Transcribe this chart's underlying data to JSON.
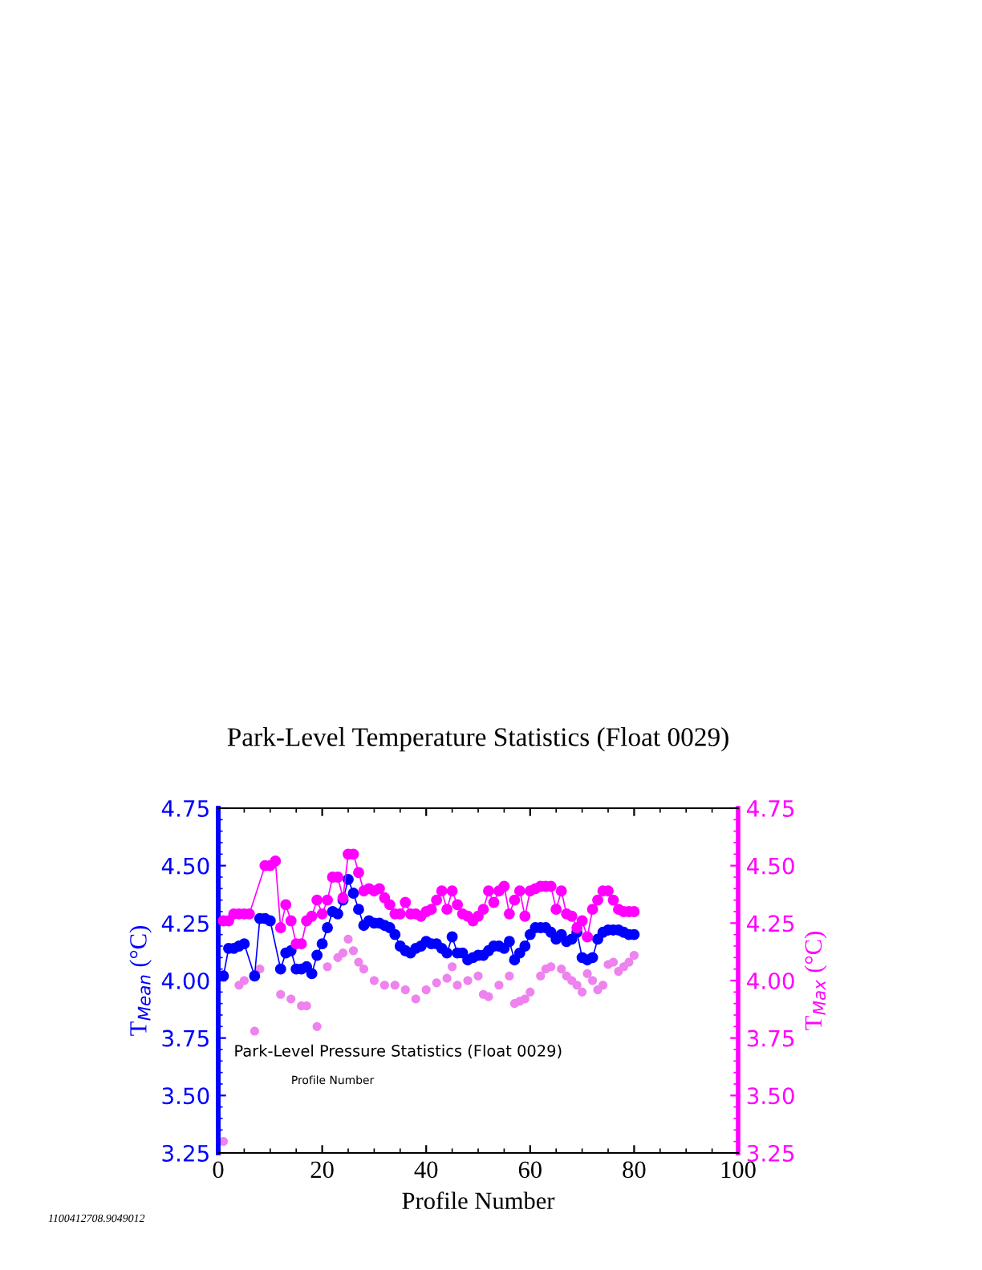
{
  "chart_data": {
    "type": "line",
    "title": "Park-Level Temperature Statistics (Float 0029)",
    "xlabel": "Profile Number",
    "ylabel": "T$_{Mean}$ (°C)",
    "y2label": "T$_{Max}$ (°C)",
    "xlim": [
      0,
      100
    ],
    "xticks": [
      0,
      20,
      40,
      60,
      80,
      100
    ],
    "ylim": [
      3.25,
      4.75
    ],
    "yticks": [
      3.25,
      {
        "value": 3.5,
        "label": "3.50"
      },
      3.75,
      {
        "value": 4.0,
        "label": "4.00"
      },
      4.25,
      {
        "value": 4.5,
        "label": "4.50"
      },
      4.75
    ],
    "y2lim": [
      3.25,
      4.75
    ],
    "y2ticks": [
      3.25,
      {
        "value": 3.5,
        "label": "3.50"
      },
      3.75,
      {
        "value": 4.0,
        "label": "4.00"
      },
      4.25,
      {
        "value": 4.5,
        "label": "4.50"
      },
      4.75
    ],
    "marker": "circle",
    "series": [
      {
        "color": "#0000ff",
        "x": [
          1,
          2,
          3,
          4,
          5,
          7,
          8,
          9,
          10,
          12,
          13,
          14,
          15,
          16,
          17,
          18,
          19,
          20,
          21,
          22,
          23,
          24,
          25,
          26,
          27,
          28,
          29,
          30,
          31,
          32,
          33,
          34,
          35,
          36,
          37,
          38,
          39,
          40,
          41,
          42,
          43,
          44,
          45,
          46,
          47,
          48,
          49,
          50,
          51,
          52,
          53,
          54,
          55,
          56,
          57,
          58,
          59,
          60,
          61,
          62,
          63,
          64,
          65,
          66,
          67,
          68,
          69,
          70,
          71,
          72,
          73,
          74,
          75,
          76,
          77,
          78,
          79,
          80
        ],
        "values": [
          4.02,
          4.14,
          4.14,
          4.15,
          4.16,
          4.02,
          4.27,
          4.27,
          4.26,
          4.05,
          4.12,
          4.13,
          4.05,
          4.05,
          4.06,
          4.03,
          4.11,
          4.16,
          4.23,
          4.3,
          4.29,
          4.35,
          4.44,
          4.38,
          4.31,
          4.24,
          4.26,
          4.25,
          4.25,
          4.24,
          4.23,
          4.2,
          4.15,
          4.13,
          4.12,
          4.14,
          4.15,
          4.17,
          4.16,
          4.16,
          4.14,
          4.12,
          4.19,
          4.12,
          4.12,
          4.09,
          4.1,
          4.11,
          4.11,
          4.13,
          4.15,
          4.15,
          4.14,
          4.17,
          4.09,
          4.12,
          4.15,
          4.2,
          4.23,
          4.23,
          4.23,
          4.21,
          4.18,
          4.2,
          4.17,
          4.18,
          4.21,
          4.1,
          4.09,
          4.1,
          4.18,
          4.21,
          4.22,
          4.22,
          4.22,
          4.21,
          4.2,
          4.2
        ]
      },
      {
        "axis": "y2",
        "color": "#ff00ff",
        "x": [
          1,
          2,
          3,
          4,
          5,
          6,
          9,
          10,
          11,
          12,
          13,
          14,
          15,
          16,
          17,
          18,
          19,
          20,
          21,
          22,
          23,
          24,
          25,
          26,
          27,
          28,
          29,
          30,
          31,
          32,
          33,
          34,
          35,
          36,
          37,
          38,
          39,
          40,
          41,
          42,
          43,
          44,
          45,
          46,
          47,
          48,
          49,
          50,
          51,
          52,
          53,
          54,
          55,
          56,
          57,
          58,
          59,
          60,
          61,
          62,
          63,
          64,
          65,
          66,
          67,
          68,
          69,
          70,
          71,
          72,
          73,
          74,
          75,
          76,
          77,
          78,
          79,
          80
        ],
        "values": [
          4.26,
          4.26,
          4.29,
          4.29,
          4.29,
          4.29,
          4.5,
          4.5,
          4.52,
          4.23,
          4.33,
          4.26,
          4.16,
          4.16,
          4.26,
          4.28,
          4.35,
          4.29,
          4.35,
          4.45,
          4.45,
          4.36,
          4.55,
          4.55,
          4.47,
          4.39,
          4.4,
          4.39,
          4.4,
          4.36,
          4.33,
          4.29,
          4.29,
          4.34,
          4.29,
          4.29,
          4.28,
          4.3,
          4.31,
          4.35,
          4.39,
          4.31,
          4.39,
          4.33,
          4.29,
          4.28,
          4.26,
          4.28,
          4.31,
          4.39,
          4.34,
          4.39,
          4.41,
          4.29,
          4.35,
          4.39,
          4.28,
          4.39,
          4.4,
          4.41,
          4.41,
          4.41,
          4.31,
          4.39,
          4.29,
          4.28,
          4.23,
          4.26,
          4.19,
          4.31,
          4.35,
          4.39,
          4.39,
          4.35,
          4.31,
          4.3,
          4.3,
          4.3
        ]
      },
      {
        "type": "scatter",
        "color": "#ee82ee",
        "x": [
          1,
          4,
          5,
          7,
          8,
          12,
          14,
          16,
          17,
          19,
          21,
          23,
          24,
          25,
          26,
          27,
          28,
          30,
          32,
          34,
          36,
          38,
          40,
          42,
          44,
          45,
          46,
          48,
          50,
          51,
          52,
          54,
          56,
          57,
          58,
          59,
          60,
          62,
          63,
          64,
          66,
          67,
          68,
          69,
          70,
          71,
          72,
          73,
          74,
          75,
          76,
          77,
          78,
          79,
          80
        ],
        "values": [
          3.3,
          3.98,
          4.0,
          3.78,
          4.05,
          3.94,
          3.92,
          3.89,
          3.89,
          3.8,
          4.06,
          4.1,
          4.12,
          4.18,
          4.13,
          4.08,
          4.05,
          4.0,
          3.98,
          3.98,
          3.96,
          3.92,
          3.96,
          3.99,
          4.01,
          4.06,
          3.98,
          4.0,
          4.02,
          3.94,
          3.93,
          3.98,
          4.02,
          3.9,
          3.91,
          3.92,
          3.95,
          4.02,
          4.05,
          4.06,
          4.05,
          4.02,
          4.0,
          3.98,
          3.95,
          4.03,
          4.0,
          3.96,
          3.98,
          4.07,
          4.08,
          4.04,
          4.06,
          4.08,
          4.11
        ]
      }
    ],
    "annotations": [
      "Park-Level Pressure Statistics (Float 0029)",
      "Profile Number",
      "1100412708.9049012"
    ]
  }
}
